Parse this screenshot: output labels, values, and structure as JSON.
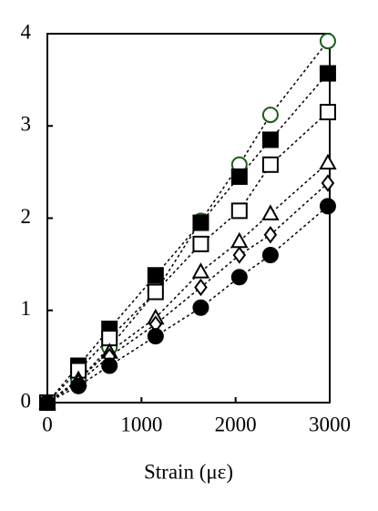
{
  "chart_data": {
    "type": "scatter",
    "x_label": "Strain (με)",
    "x": [
      0,
      330,
      660,
      1150,
      1630,
      2040,
      2370,
      2980
    ],
    "series": [
      {
        "marker": "circle-open",
        "color": "#1a5c1a",
        "values": [
          0,
          0.24,
          0.6,
          1.2,
          1.97,
          2.58,
          3.12,
          3.92
        ]
      },
      {
        "marker": "square-filled",
        "color": "#000000",
        "values": [
          0,
          0.4,
          0.8,
          1.38,
          1.95,
          2.45,
          2.85,
          3.57
        ]
      },
      {
        "marker": "square-open",
        "color": "#000000",
        "values": [
          0,
          0.35,
          0.7,
          1.2,
          1.72,
          2.08,
          2.58,
          3.15
        ]
      },
      {
        "marker": "triangle-open",
        "color": "#000000",
        "values": [
          0,
          0.25,
          0.55,
          0.92,
          1.42,
          1.75,
          2.05,
          2.6
        ]
      },
      {
        "marker": "diamond-open",
        "color": "#000000",
        "values": [
          0,
          0.22,
          0.5,
          0.85,
          1.25,
          1.6,
          1.82,
          2.38
        ]
      },
      {
        "marker": "circle-filled",
        "color": "#000000",
        "values": [
          0,
          0.18,
          0.4,
          0.72,
          1.03,
          1.36,
          1.6,
          2.13
        ]
      }
    ],
    "xlim": [
      0,
      3000
    ],
    "xticks": [
      0,
      1000,
      2000,
      3000
    ],
    "ylim": [
      0,
      4
    ],
    "yticks": [
      0,
      1,
      2,
      3,
      4
    ],
    "line_style": "dotted"
  }
}
